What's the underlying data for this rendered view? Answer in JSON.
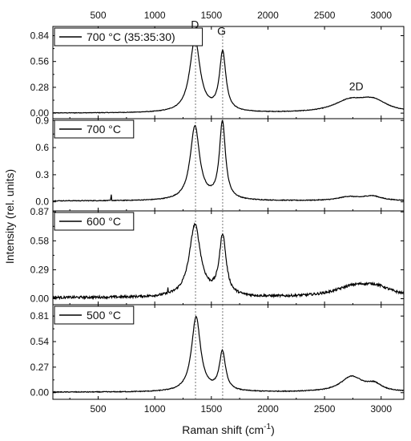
{
  "chart_data": {
    "type": "line",
    "xlabel": "Raman shift (cm",
    "xlabel_sup": "-1",
    "xlabel_end": ")",
    "ylabel": "Intensity (rel. units)",
    "xlim": [
      100,
      3200
    ],
    "xticks": [
      500,
      1000,
      1500,
      2000,
      2500,
      3000
    ],
    "xtick_labels": [
      "500",
      "1000",
      "1500",
      "2000",
      "2500",
      "3000"
    ],
    "reference_lines": [
      1360,
      1600
    ],
    "peak_labels": [
      {
        "text": "D",
        "x": 1355,
        "y": 0.92
      },
      {
        "text": "G",
        "x": 1590,
        "y": 0.85
      },
      {
        "text": "2D",
        "x": 2780,
        "y": 0.25
      }
    ],
    "series": [
      {
        "name": "700 °C (35:35:30)",
        "ylim": [
          -0.06,
          0.94
        ],
        "yticks": [
          0.0,
          0.28,
          0.56,
          0.84
        ],
        "ytick_labels": [
          "0.00",
          "0.28",
          "0.56",
          "0.84"
        ],
        "baseline": 0.0,
        "noise": 0.003,
        "peaks": [
          {
            "center": 1355,
            "height": 0.79,
            "width": 55
          },
          {
            "center": 1600,
            "height": 0.64,
            "width": 34
          },
          {
            "center": 2720,
            "height": 0.12,
            "width": 170
          },
          {
            "center": 2930,
            "height": 0.12,
            "width": 150
          }
        ]
      },
      {
        "name": "700 °C",
        "ylim": [
          -0.1,
          0.92
        ],
        "yticks": [
          0.0,
          0.3,
          0.6,
          0.9
        ],
        "ytick_labels": [
          "0.0",
          "0.3",
          "0.6",
          "0.9"
        ],
        "baseline": 0.01,
        "noise": 0.004,
        "spikes": [
          {
            "x": 615,
            "height": 0.07
          }
        ],
        "peaks": [
          {
            "center": 1355,
            "height": 0.82,
            "width": 50
          },
          {
            "center": 1598,
            "height": 0.86,
            "width": 32
          },
          {
            "center": 2710,
            "height": 0.04,
            "width": 110
          },
          {
            "center": 2920,
            "height": 0.05,
            "width": 100
          }
        ]
      },
      {
        "name": "600 °C",
        "ylim": [
          -0.06,
          0.88
        ],
        "yticks": [
          0.0,
          0.29,
          0.58,
          0.87
        ],
        "ytick_labels": [
          "0.00",
          "0.29",
          "0.58",
          "0.87"
        ],
        "baseline": 0.01,
        "noise": 0.012,
        "spikes": [
          {
            "x": 1115,
            "height": 0.06
          }
        ],
        "peaks": [
          {
            "center": 1355,
            "height": 0.72,
            "width": 60
          },
          {
            "center": 1600,
            "height": 0.6,
            "width": 36
          },
          {
            "center": 2760,
            "height": 0.1,
            "width": 210
          },
          {
            "center": 2960,
            "height": 0.08,
            "width": 160
          }
        ]
      },
      {
        "name": "500 °C",
        "ylim": [
          -0.07,
          0.93
        ],
        "yticks": [
          0.0,
          0.27,
          0.54,
          0.81
        ],
        "ytick_labels": [
          "0.00",
          "0.27",
          "0.54",
          "0.81"
        ],
        "baseline": 0.005,
        "noise": 0.004,
        "peaks": [
          {
            "center": 1365,
            "height": 0.79,
            "width": 48
          },
          {
            "center": 1598,
            "height": 0.41,
            "width": 33
          },
          {
            "center": 2740,
            "height": 0.16,
            "width": 120
          },
          {
            "center": 2940,
            "height": 0.07,
            "width": 80
          }
        ]
      }
    ]
  }
}
